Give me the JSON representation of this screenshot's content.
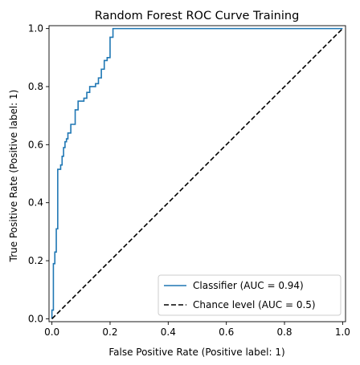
{
  "chart_data": {
    "type": "line",
    "title": "Random Forest ROC Curve Training",
    "xlabel": "False Positive Rate (Positive label: 1)",
    "ylabel": "True Positive Rate (Positive label: 1)",
    "xlim": [
      -0.01,
      1.01
    ],
    "ylim": [
      -0.01,
      1.01
    ],
    "xticks": [
      0.0,
      0.2,
      0.4,
      0.6,
      0.8,
      1.0
    ],
    "yticks": [
      0.0,
      0.2,
      0.4,
      0.6,
      0.8,
      1.0
    ],
    "xtick_labels": [
      "0.0",
      "0.2",
      "0.4",
      "0.6",
      "0.8",
      "1.0"
    ],
    "ytick_labels": [
      "0.0",
      "0.2",
      "0.4",
      "0.6",
      "0.8",
      "1.0"
    ],
    "grid": false,
    "legend_position": "lower-right",
    "series": [
      {
        "name": "Classifier (AUC = 0.94)",
        "color": "#1f77b4",
        "style": "solid",
        "x": [
          0.0,
          0.0,
          0.005,
          0.005,
          0.01,
          0.01,
          0.015,
          0.015,
          0.02,
          0.02,
          0.03,
          0.03,
          0.035,
          0.035,
          0.04,
          0.04,
          0.045,
          0.045,
          0.05,
          0.05,
          0.055,
          0.055,
          0.065,
          0.065,
          0.08,
          0.08,
          0.09,
          0.09,
          0.11,
          0.11,
          0.12,
          0.12,
          0.13,
          0.13,
          0.15,
          0.15,
          0.16,
          0.16,
          0.17,
          0.17,
          0.18,
          0.18,
          0.19,
          0.19,
          0.2,
          0.2,
          0.21,
          0.21,
          1.0
        ],
        "y": [
          0.0,
          0.03,
          0.03,
          0.19,
          0.19,
          0.23,
          0.23,
          0.31,
          0.31,
          0.515,
          0.515,
          0.53,
          0.53,
          0.56,
          0.56,
          0.59,
          0.59,
          0.61,
          0.61,
          0.62,
          0.62,
          0.64,
          0.64,
          0.67,
          0.67,
          0.72,
          0.72,
          0.75,
          0.75,
          0.76,
          0.76,
          0.78,
          0.78,
          0.8,
          0.8,
          0.81,
          0.81,
          0.83,
          0.83,
          0.86,
          0.86,
          0.89,
          0.89,
          0.9,
          0.9,
          0.97,
          0.97,
          1.0,
          1.0
        ]
      },
      {
        "name": "Chance level (AUC = 0.5)",
        "color": "#000000",
        "style": "dashed",
        "x": [
          0.0,
          1.0
        ],
        "y": [
          0.0,
          1.0
        ]
      }
    ]
  }
}
